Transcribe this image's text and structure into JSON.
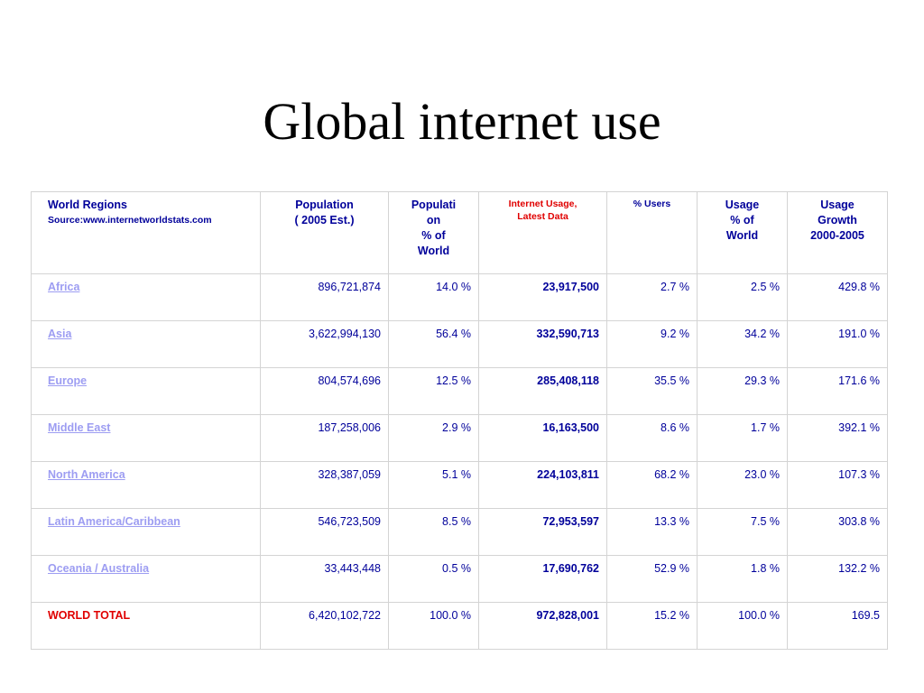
{
  "title": "Global internet use",
  "table": {
    "headers": {
      "region": "World Regions",
      "source": "Source:www.internetworldstats.com",
      "population": [
        "Population",
        "( 2005 Est.)"
      ],
      "pop_pct": [
        "Populati",
        "on",
        "% of",
        "World"
      ],
      "usage": [
        "Internet Usage,",
        "Latest Data"
      ],
      "users_pct": "% Users",
      "usage_pct": [
        "Usage",
        "% of",
        "World"
      ],
      "growth": [
        "Usage",
        "Growth",
        "2000-2005"
      ]
    },
    "rows": [
      {
        "region": "Africa",
        "population": "896,721,874",
        "pop_pct": "14.0 %",
        "usage": "23,917,500",
        "users_pct": "2.7 %",
        "usage_pct": "2.5 %",
        "growth": "429.8 %"
      },
      {
        "region": "Asia",
        "population": "3,622,994,130",
        "pop_pct": "56.4 %",
        "usage": "332,590,713",
        "users_pct": "9.2 %",
        "usage_pct": "34.2 %",
        "growth": "191.0 %"
      },
      {
        "region": "Europe",
        "population": "804,574,696",
        "pop_pct": "12.5 %",
        "usage": "285,408,118",
        "users_pct": "35.5 %",
        "usage_pct": "29.3 %",
        "growth": "171.6 %"
      },
      {
        "region": "Middle East",
        "population": "187,258,006",
        "pop_pct": "2.9 %",
        "usage": "16,163,500",
        "users_pct": "8.6 %",
        "usage_pct": "1.7 %",
        "growth": "392.1 %"
      },
      {
        "region": "North America",
        "population": "328,387,059",
        "pop_pct": "5.1 %",
        "usage": "224,103,811",
        "users_pct": "68.2 %",
        "usage_pct": "23.0 %",
        "growth": "107.3 %"
      },
      {
        "region": "Latin America/Caribbean",
        "population": "546,723,509",
        "pop_pct": "8.5 %",
        "usage": "72,953,597",
        "users_pct": "13.3 %",
        "usage_pct": "7.5 %",
        "growth": "303.8 %"
      },
      {
        "region": "Oceania / Australia",
        "population": "33,443,448",
        "pop_pct": "0.5 %",
        "usage": "17,690,762",
        "users_pct": "52.9 %",
        "usage_pct": "1.8 %",
        "growth": "132.2 %"
      }
    ],
    "total": {
      "region": "WORLD TOTAL",
      "population": "6,420,102,722",
      "pop_pct": "100.0 %",
      "usage": "972,828,001",
      "users_pct": "15.2 %",
      "usage_pct": "100.0 %",
      "growth": "169.5"
    }
  },
  "colors": {
    "text": "#00009a",
    "link": "#9d9df2",
    "accent_red": "#e00000",
    "border": "#d4d4d4"
  }
}
